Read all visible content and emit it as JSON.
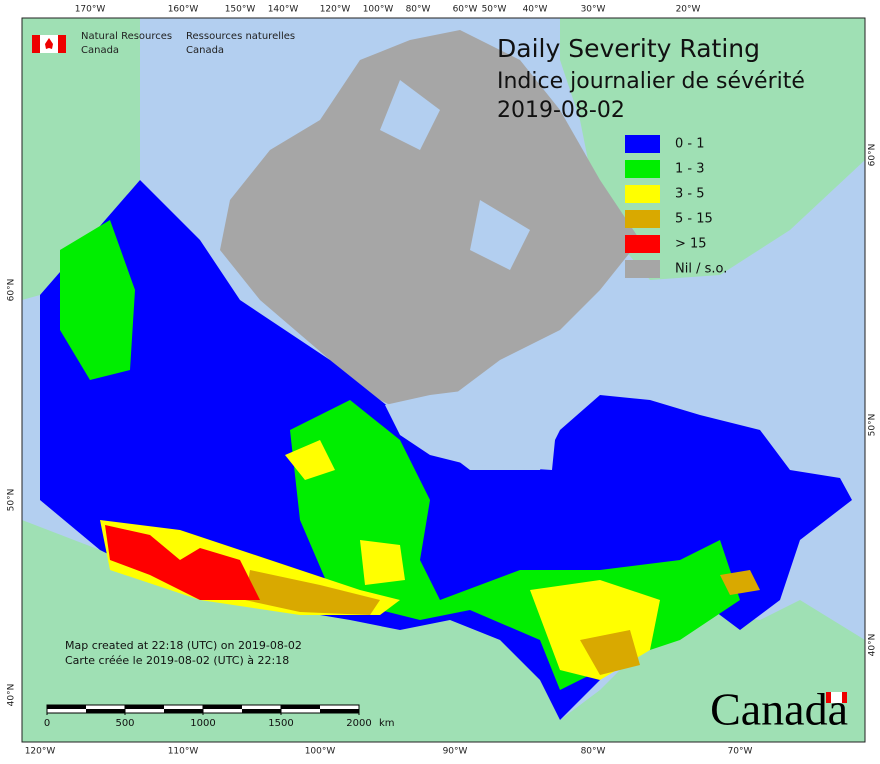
{
  "header": {
    "title": "Daily Severity Rating",
    "subtitle": "Indice journalier de sévérité",
    "date": "2019-08-02"
  },
  "agency": {
    "en_line1": "Natural Resources",
    "en_line2": "Canada",
    "fr_line1": "Ressources naturelles",
    "fr_line2": "Canada"
  },
  "legend": [
    {
      "label": "0 - 1",
      "color": "#0000ff"
    },
    {
      "label": "1 - 3",
      "color": "#00ee00"
    },
    {
      "label": "3 - 5",
      "color": "#ffff00"
    },
    {
      "label": "5 - 15",
      "color": "#d9a900"
    },
    {
      "label": "> 15",
      "color": "#ff0000"
    },
    {
      "label": "Nil / s.o.",
      "color": "#a6a6a6"
    }
  ],
  "top_lon_labels": [
    "170°W",
    "160°W",
    "150°W",
    "140°W",
    "120°W",
    "100°W",
    "80°W",
    "60°W",
    "50°W",
    "40°W",
    "30°W",
    "20°W"
  ],
  "bottom_lon_labels": [
    "120°W",
    "110°W",
    "100°W",
    "90°W",
    "80°W",
    "70°W"
  ],
  "left_lat_labels": [
    "60°N",
    "50°N",
    "40°N"
  ],
  "right_lat_labels": [
    "60°N",
    "50°N",
    "40°N"
  ],
  "footnote": [
    "Map created at 22:18 (UTC) on 2019-08-02",
    "Carte créée le 2019-08-02 (UTC) à 22:18"
  ],
  "scale": {
    "ticks": [
      0,
      500,
      1000,
      1500,
      2000
    ],
    "unit": "km"
  },
  "wordmark": "Canada"
}
